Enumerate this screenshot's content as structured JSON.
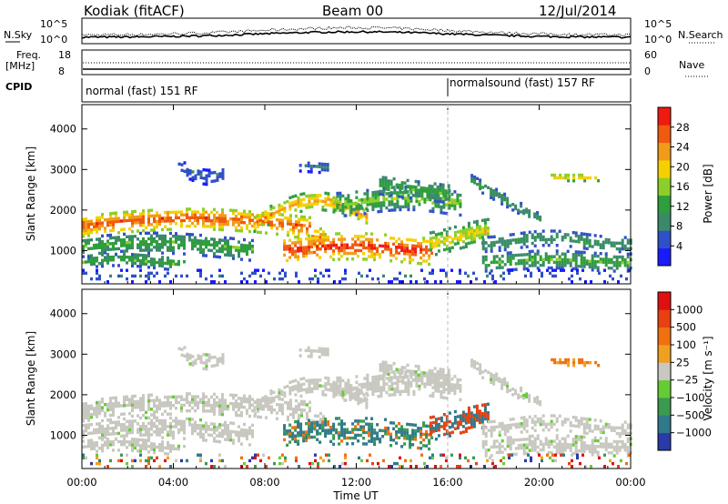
{
  "header": {
    "station": "Kodiak (fitACF)",
    "beam": "Beam 00",
    "date": "12/Jul/2014"
  },
  "strip_labels": {
    "nsky": "N.Sky",
    "nsearch": "N.Search",
    "freq": "Freq.",
    "freq_unit": "[MHz]",
    "nave": "Nave",
    "cpid": "CPID",
    "nsky_ticks": [
      "10^5",
      "10^0"
    ],
    "nsearch_ticks": [
      "10^5",
      "10^0"
    ],
    "freq_ticks": [
      "18",
      "8"
    ],
    "nave_ticks": [
      "60",
      "0"
    ]
  },
  "cpid_modes": [
    {
      "label": "normal (fast) 151 RF",
      "start_hour": 0
    },
    {
      "label": "normalsound (fast) 157 RF",
      "start_hour": 16
    }
  ],
  "chart_data": [
    {
      "type": "heatmap",
      "panel": "power",
      "ylabel": "Slant Range [km]",
      "ylim": [
        180,
        4600
      ],
      "yticks": [
        "1000",
        "2000",
        "3000",
        "4000"
      ],
      "xlabel": "Time UT",
      "xlim_hours": [
        0,
        24
      ],
      "xticks": [
        "00:00",
        "04:00",
        "08:00",
        "12:00",
        "16:00",
        "20:00",
        "00:00"
      ],
      "colorbar": {
        "label": "Power [dB]",
        "ticks": [
          "4",
          "8",
          "12",
          "16",
          "20",
          "24",
          "28"
        ],
        "colors": [
          "#1a1aff",
          "#3050c8",
          "#3a8a6a",
          "#2f9e3c",
          "#8ccf2a",
          "#f5d000",
          "#f29a1a",
          "#f05a10",
          "#f01a10"
        ]
      }
    },
    {
      "type": "heatmap",
      "panel": "velocity",
      "ylabel": "Slant Range [km]",
      "ylim": [
        180,
        4600
      ],
      "yticks": [
        "1000",
        "2000",
        "3000",
        "4000"
      ],
      "xlabel": "Time UT",
      "xlim_hours": [
        0,
        24
      ],
      "xticks": [
        "00:00",
        "04:00",
        "08:00",
        "12:00",
        "16:00",
        "20:00",
        "00:00"
      ],
      "colorbar": {
        "label": "Velocity [m s⁻¹]",
        "ticks": [
          "1000",
          "500",
          "100",
          "25",
          "−25",
          "−100",
          "−500",
          "−1000"
        ],
        "colors": [
          "#2a3aa8",
          "#2f7a8a",
          "#3a9a50",
          "#66cc33",
          "#c8c8c0",
          "#f0a020",
          "#f07010",
          "#e84010",
          "#e01010"
        ]
      }
    }
  ]
}
